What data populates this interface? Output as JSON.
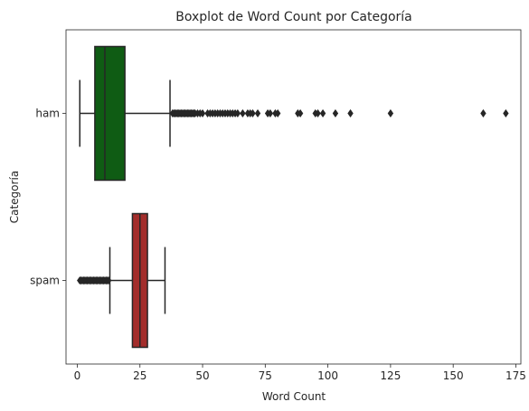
{
  "chart_data": {
    "type": "boxplot",
    "orientation": "horizontal",
    "title": "Boxplot de Word Count por Categoría",
    "xlabel": "Word Count",
    "ylabel": "Categoría",
    "xlim": [
      -4.5,
      177
    ],
    "xticks": [
      0,
      25,
      50,
      75,
      100,
      125,
      150,
      175
    ],
    "grid": false,
    "categories": [
      "ham",
      "spam"
    ],
    "series": [
      {
        "category": "ham",
        "color": "#0f5c14",
        "whisker_low": 1,
        "q1": 7,
        "median": 11,
        "q3": 19,
        "whisker_high": 37,
        "outliers": [
          38,
          38.5,
          39,
          39.5,
          40,
          40.5,
          41,
          41.5,
          42,
          42.5,
          43,
          43.5,
          44,
          44.5,
          45,
          45.5,
          46,
          46.5,
          47,
          48,
          49,
          50,
          52,
          53,
          54,
          55,
          56,
          57,
          58,
          59,
          60,
          61,
          62,
          63,
          64,
          66,
          68,
          69,
          70,
          72,
          76,
          77,
          79,
          80,
          88,
          89,
          95,
          96,
          98,
          103,
          109,
          125,
          162,
          171
        ]
      },
      {
        "category": "spam",
        "color": "#a32d2b",
        "whisker_low": 13,
        "q1": 22,
        "median": 25,
        "q3": 28,
        "whisker_high": 35,
        "outliers": [
          1,
          1.5,
          2,
          2.5,
          3,
          3.5,
          4,
          4.5,
          5,
          5.5,
          6,
          6.5,
          7,
          7.5,
          8,
          8.5,
          9,
          9.5,
          10,
          10.5,
          11,
          11.5,
          12,
          12.5
        ]
      }
    ]
  }
}
